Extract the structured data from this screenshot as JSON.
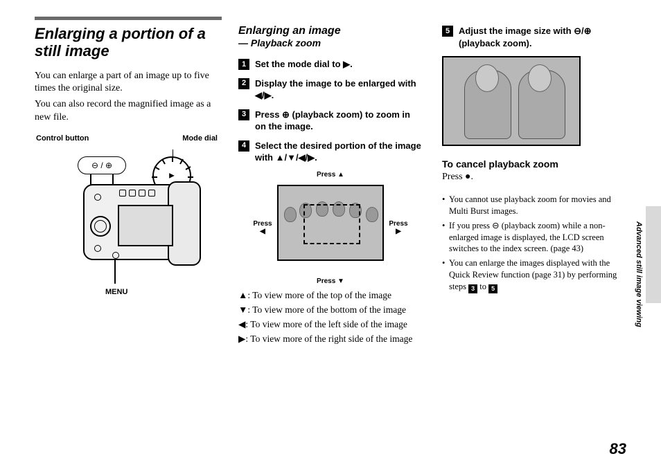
{
  "col1": {
    "title": "Enlarging a portion of a still image",
    "p1": "You can enlarge a part of an image up to five times the original size.",
    "p2": "You can also record the magnified image as a new file.",
    "label_control": "Control button",
    "label_modedial": "Mode dial",
    "label_menu": "MENU",
    "zoom_symbols": "⊖ / ⊕"
  },
  "col2": {
    "subtitle": "Enlarging an image",
    "dash": "— Playback zoom",
    "steps": [
      {
        "n": "1",
        "text": "Set the mode dial to ▶."
      },
      {
        "n": "2",
        "text": "Display the image to be enlarged with ◀/▶."
      },
      {
        "n": "3",
        "text": "Press ⊕ (playback zoom) to zoom in on the image."
      },
      {
        "n": "4",
        "text": "Select the desired portion of the image with ▲/▼/◀/▶."
      }
    ],
    "press_up": "Press ▲",
    "press_down": "Press ▼",
    "press_left": "Press\n◀",
    "press_right": "Press\n▶",
    "dir_up": "▲: To view more of the top of the image",
    "dir_down": "▼: To view more of the bottom of the image",
    "dir_left": "◀: To view more of the left side of the image",
    "dir_right": "▶: To view more of the right side of the image"
  },
  "col3": {
    "step5": {
      "n": "5",
      "text": "Adjust the image size with ⊖/⊕ (playback zoom)."
    },
    "cancel_h": "To cancel playback zoom",
    "cancel_b": "Press ●.",
    "b1": "You cannot use playback zoom for movies and Multi Burst images.",
    "b2a": "If you press ⊖ (playback zoom) while a non-enlarged image is displayed, the LCD screen switches to the index screen. (page 43)",
    "b3a": "You can enlarge the images displayed with the Quick Review function (page 31) by performing steps ",
    "b3_from": "3",
    "b3_mid": " to ",
    "b3_to": "5"
  },
  "side": "Advanced still image viewing",
  "page": "83"
}
